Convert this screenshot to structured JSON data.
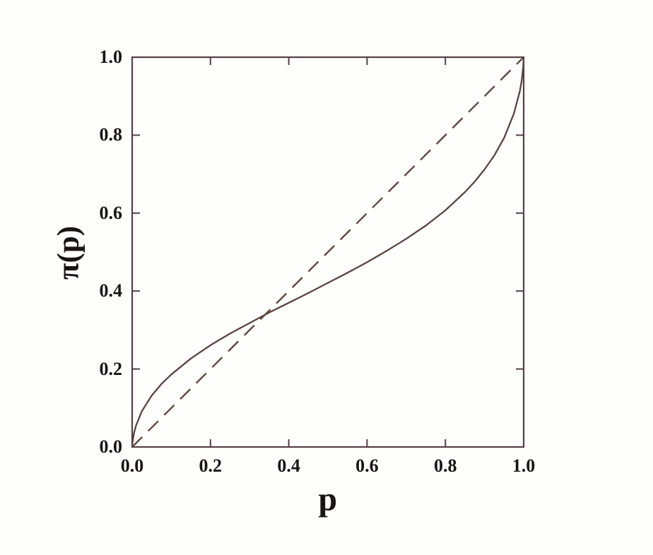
{
  "chart_data": {
    "type": "line",
    "title": "",
    "xlabel": "p",
    "ylabel": "π(p)",
    "xlim": [
      0,
      1
    ],
    "ylim": [
      0,
      1
    ],
    "grid": false,
    "legend": "none",
    "tick_sides": [
      "bottom",
      "left",
      "top",
      "right"
    ],
    "x_ticks": {
      "values": [
        0,
        0.2,
        0.4,
        0.6,
        0.8,
        1
      ],
      "labels": [
        "0.0",
        "0.2",
        "0.4",
        "0.6",
        "0.8",
        "1.0"
      ]
    },
    "y_ticks": {
      "values": [
        0,
        0.2,
        0.4,
        0.6,
        0.8,
        1
      ],
      "labels": [
        "0.0",
        "0.2",
        "0.4",
        "0.6",
        "0.8",
        "1.0"
      ]
    },
    "series": [
      {
        "name": "probability-weighting-curve",
        "line_style": "solid",
        "color": "#5a443f",
        "x": [
          0,
          0.001,
          0.005,
          0.01,
          0.025,
          0.05,
          0.075,
          0.1,
          0.15,
          0.2,
          0.25,
          0.3,
          0.35,
          0.4,
          0.45,
          0.5,
          0.55,
          0.6,
          0.65,
          0.7,
          0.75,
          0.8,
          0.85,
          0.875,
          0.9,
          0.925,
          0.95,
          0.975,
          0.99,
          0.995,
          0.999,
          1
        ],
        "y": [
          0,
          0.014,
          0.037,
          0.055,
          0.092,
          0.132,
          0.162,
          0.186,
          0.227,
          0.261,
          0.291,
          0.318,
          0.345,
          0.37,
          0.395,
          0.421,
          0.447,
          0.474,
          0.503,
          0.534,
          0.568,
          0.607,
          0.654,
          0.681,
          0.712,
          0.748,
          0.793,
          0.855,
          0.912,
          0.94,
          0.977,
          1.0
        ]
      },
      {
        "name": "identity-diagonal",
        "line_style": "dashed",
        "color": "#60493f",
        "x": [
          0,
          1
        ],
        "y": [
          0,
          1
        ]
      }
    ]
  },
  "colors": {
    "frame": "#564044",
    "tick": "#564044",
    "text": "#1a1512",
    "background": "#fefefd"
  }
}
